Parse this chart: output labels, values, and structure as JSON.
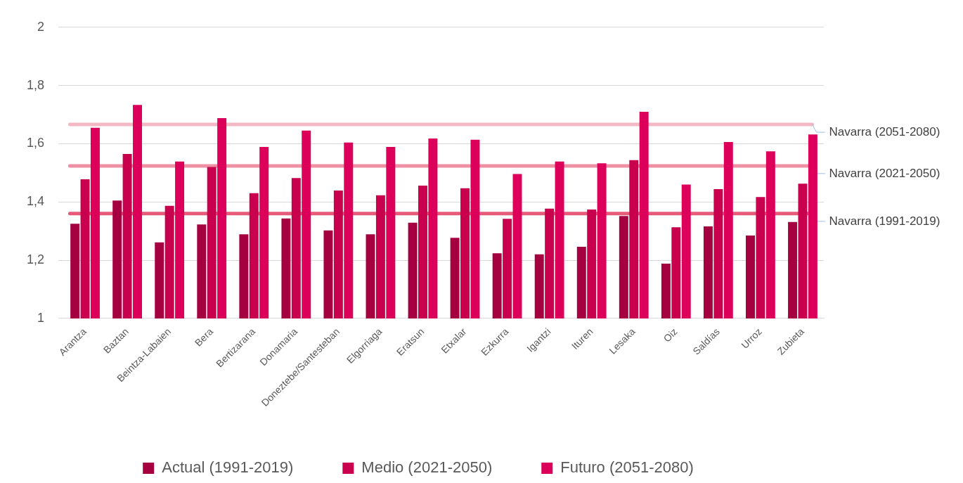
{
  "chart_data": {
    "type": "bar",
    "categories": [
      "Arantza",
      "Baztan",
      "Beintza-Labaien",
      "Bera",
      "Bertizarana",
      "Donamaria",
      "Doneztebe/Santesteban",
      "Elgorriaga",
      "Eratsun",
      "Etxalar",
      "Ezkurra",
      "Igantzi",
      "Ituren",
      "Lesaka",
      "Oiz",
      "Saldías",
      "Urroz",
      "Zubieta"
    ],
    "series": [
      {
        "name": "Actual (1991-2019)",
        "color": "#a50040",
        "values": [
          1.325,
          1.405,
          1.261,
          1.323,
          1.289,
          1.343,
          1.302,
          1.289,
          1.329,
          1.277,
          1.224,
          1.22,
          1.246,
          1.352,
          1.188,
          1.316,
          1.285,
          1.331
        ]
      },
      {
        "name": "Medio (2021-2050)",
        "color": "#c8004e",
        "values": [
          1.478,
          1.565,
          1.387,
          1.52,
          1.43,
          1.482,
          1.439,
          1.423,
          1.456,
          1.447,
          1.342,
          1.377,
          1.374,
          1.544,
          1.313,
          1.444,
          1.417,
          1.463
        ]
      },
      {
        "name": "Futuro (2051-2080)",
        "color": "#dc005a",
        "values": [
          1.655,
          1.733,
          1.539,
          1.688,
          1.589,
          1.645,
          1.604,
          1.589,
          1.618,
          1.614,
          1.496,
          1.539,
          1.533,
          1.71,
          1.46,
          1.606,
          1.574,
          1.632
        ]
      }
    ],
    "ylim": [
      1,
      2
    ],
    "yticks": [
      1,
      {
        "value": 1.2,
        "label": "1,2"
      },
      {
        "value": 1.4,
        "label": "1,4"
      },
      {
        "value": 1.6,
        "label": "1,6"
      },
      {
        "value": 1.8,
        "label": "1,8"
      },
      2
    ],
    "grid": "y",
    "legend": "bottom",
    "ref_lines": [
      {
        "axis": "y",
        "value": 1.666,
        "label": "Navarra (2051-2080)",
        "color": "#f4b8c4"
      },
      {
        "axis": "y",
        "value": 1.524,
        "label": "Navarra (2021-2050)",
        "color": "#ee8fa4"
      },
      {
        "axis": "y",
        "value": 1.36,
        "label": "Navarra (1991-2019)",
        "color": "#e65a7a"
      }
    ]
  }
}
